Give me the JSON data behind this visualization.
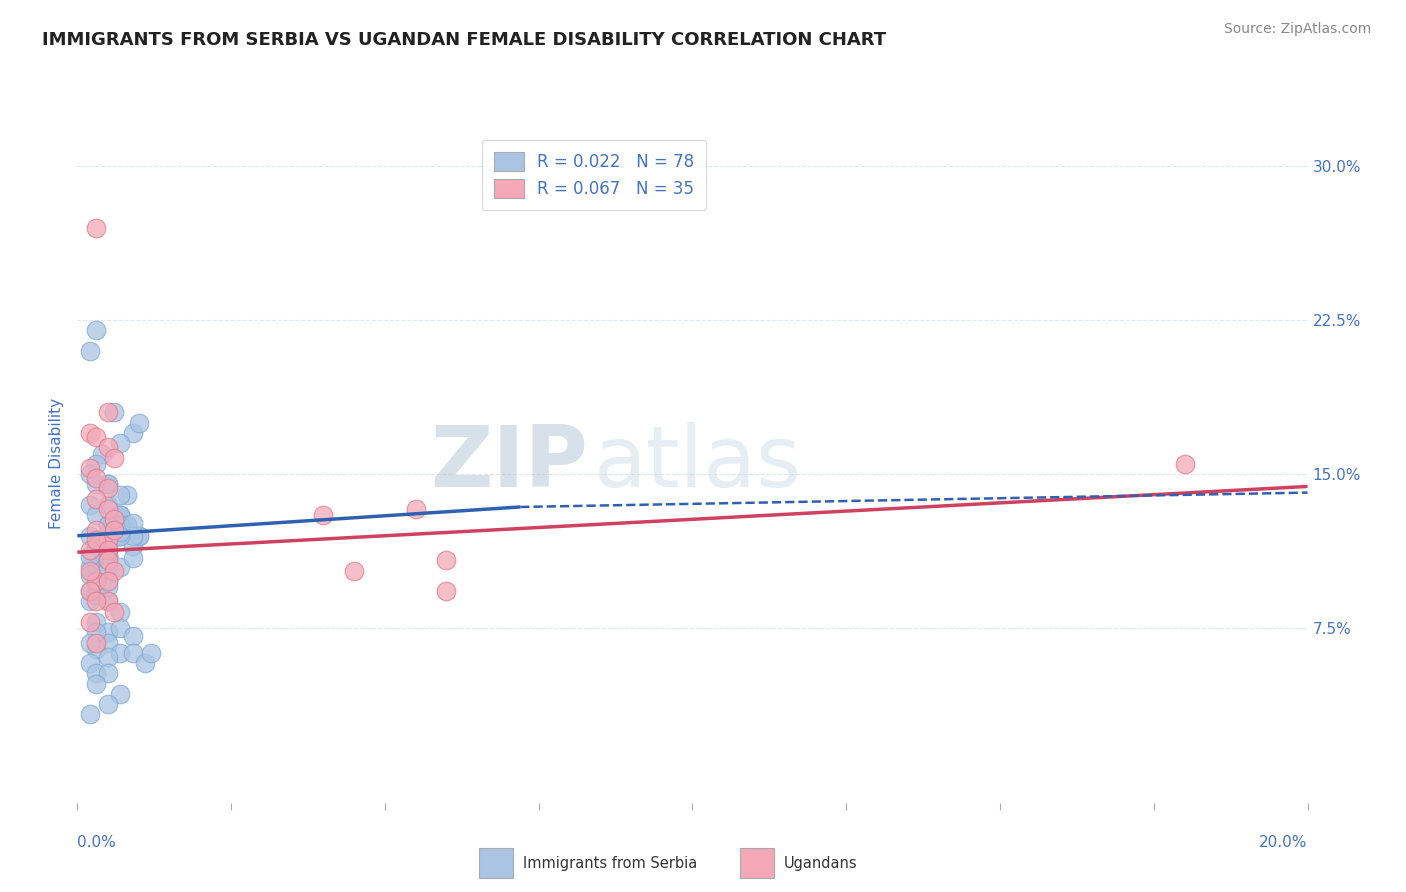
{
  "title": "IMMIGRANTS FROM SERBIA VS UGANDAN FEMALE DISABILITY CORRELATION CHART",
  "source": "Source: ZipAtlas.com",
  "ylabel": "Female Disability",
  "yticks": [
    0.0,
    0.075,
    0.15,
    0.225,
    0.3
  ],
  "ytick_labels": [
    "",
    "7.5%",
    "15.0%",
    "22.5%",
    "30.0%"
  ],
  "xlim": [
    0.0,
    0.2
  ],
  "ylim": [
    -0.01,
    0.32
  ],
  "legend_entries": [
    {
      "label": "R = 0.022   N = 78",
      "color": "#aac4e4"
    },
    {
      "label": "R = 0.067   N = 35",
      "color": "#f4a8b8"
    }
  ],
  "bottom_legend": [
    {
      "label": "Immigrants from Serbia",
      "color": "#aac4e4"
    },
    {
      "label": "Ugandans",
      "color": "#f4a8b8"
    }
  ],
  "series_blue": {
    "color": "#aac4e4",
    "edge_color": "#7aaad4",
    "x": [
      0.005,
      0.008,
      0.003,
      0.002,
      0.006,
      0.009,
      0.01,
      0.007,
      0.004,
      0.003,
      0.002,
      0.003,
      0.005,
      0.007,
      0.008,
      0.01,
      0.005,
      0.004,
      0.007,
      0.005,
      0.002,
      0.003,
      0.005,
      0.007,
      0.009,
      0.005,
      0.003,
      0.002,
      0.005,
      0.007,
      0.008,
      0.01,
      0.003,
      0.005,
      0.002,
      0.007,
      0.009,
      0.005,
      0.003,
      0.002,
      0.005,
      0.007,
      0.003,
      0.002,
      0.005,
      0.007,
      0.009,
      0.003,
      0.002,
      0.005,
      0.007,
      0.003,
      0.005,
      0.002,
      0.007,
      0.009,
      0.003,
      0.005,
      0.007,
      0.009,
      0.005,
      0.003,
      0.007,
      0.005,
      0.002,
      0.003,
      0.009,
      0.011,
      0.005,
      0.007,
      0.003,
      0.002,
      0.005,
      0.012,
      0.003,
      0.007,
      0.005,
      0.002
    ],
    "y": [
      0.145,
      0.14,
      0.22,
      0.21,
      0.18,
      0.17,
      0.175,
      0.165,
      0.16,
      0.155,
      0.15,
      0.145,
      0.135,
      0.13,
      0.125,
      0.12,
      0.115,
      0.112,
      0.13,
      0.125,
      0.135,
      0.13,
      0.125,
      0.12,
      0.115,
      0.11,
      0.105,
      0.12,
      0.125,
      0.13,
      0.125,
      0.12,
      0.115,
      0.11,
      0.105,
      0.125,
      0.12,
      0.098,
      0.093,
      0.088,
      0.125,
      0.12,
      0.115,
      0.11,
      0.105,
      0.122,
      0.126,
      0.098,
      0.093,
      0.088,
      0.083,
      0.091,
      0.095,
      0.101,
      0.105,
      0.109,
      0.078,
      0.073,
      0.075,
      0.071,
      0.068,
      0.065,
      0.063,
      0.061,
      0.058,
      0.053,
      0.063,
      0.058,
      0.145,
      0.14,
      0.073,
      0.068,
      0.053,
      0.063,
      0.048,
      0.043,
      0.038,
      0.033
    ]
  },
  "series_pink": {
    "color": "#f4a8b8",
    "edge_color": "#e07888",
    "x": [
      0.003,
      0.005,
      0.002,
      0.003,
      0.005,
      0.006,
      0.002,
      0.003,
      0.005,
      0.003,
      0.005,
      0.006,
      0.003,
      0.005,
      0.002,
      0.006,
      0.003,
      0.005,
      0.005,
      0.006,
      0.003,
      0.002,
      0.005,
      0.006,
      0.04,
      0.055,
      0.06,
      0.002,
      0.005,
      0.003,
      0.002,
      0.003,
      0.045,
      0.06,
      0.18
    ],
    "y": [
      0.27,
      0.18,
      0.17,
      0.168,
      0.163,
      0.158,
      0.153,
      0.148,
      0.143,
      0.138,
      0.133,
      0.128,
      0.123,
      0.118,
      0.113,
      0.123,
      0.118,
      0.113,
      0.108,
      0.103,
      0.098,
      0.093,
      0.088,
      0.083,
      0.13,
      0.133,
      0.108,
      0.103,
      0.098,
      0.088,
      0.078,
      0.068,
      0.103,
      0.093,
      0.155
    ]
  },
  "trend_blue_solid": {
    "x_start": 0.0,
    "y_start": 0.12,
    "x_end": 0.072,
    "y_end": 0.134,
    "color": "#3060b0",
    "linewidth": 2.5
  },
  "trend_blue_dashed": {
    "x_start": 0.072,
    "y_start": 0.134,
    "x_end": 0.2,
    "y_end": 0.141,
    "color": "#3060b0",
    "linewidth": 1.8
  },
  "trend_pink_solid": {
    "x_start": 0.0,
    "y_start": 0.112,
    "x_end": 0.2,
    "y_end": 0.144,
    "color": "#d04060",
    "linewidth": 2.5
  },
  "watermark": "ZIPatlas",
  "watermark_color": "#ccdaec",
  "background_color": "#ffffff",
  "grid_color": "#dde8f0",
  "title_color": "#222222",
  "axis_color": "#4472c4",
  "title_fontsize": 13,
  "source_fontsize": 10
}
